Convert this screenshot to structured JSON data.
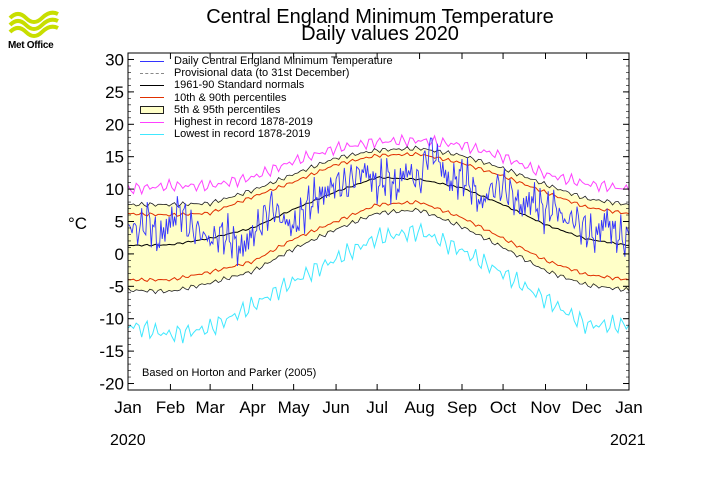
{
  "branding": {
    "logo_text": "Met Office",
    "logo_color": "#c8de00"
  },
  "chart_data": {
    "type": "line",
    "title": "Central England Minimum Temperature",
    "subtitle": "Daily values 2020",
    "ylabel": "°C",
    "ylim": [
      -21,
      31
    ],
    "yticks": [
      "30",
      "25",
      "20",
      "15",
      "10",
      "5",
      "0",
      "-5",
      "-10",
      "-15",
      "-20"
    ],
    "x_months": [
      "Jan",
      "Feb",
      "Mar",
      "Apr",
      "May",
      "Jun",
      "Jul",
      "Aug",
      "Sep",
      "Oct",
      "Nov",
      "Dec",
      "Jan"
    ],
    "year_start": "2020",
    "year_end": "2021",
    "credit": "Based on Horton and Parker (2005)",
    "grid": false,
    "legend_position": "top-left",
    "legend": [
      {
        "label": "Daily Central England Minimum Temperature",
        "style": "line",
        "color": "#3333ff"
      },
      {
        "label": "Provisional data (to 31st December)",
        "style": "dashed",
        "color": "#888888"
      },
      {
        "label": "1961-90 Standard normals",
        "style": "line",
        "color": "#000000"
      },
      {
        "label": "10th & 90th percentiles",
        "style": "line",
        "color": "#e03000"
      },
      {
        "label": "5th & 95th percentiles",
        "style": "box",
        "color": "#ffffc8"
      },
      {
        "label": "Highest in record 1878-2019",
        "style": "line",
        "color": "#ff40ff"
      },
      {
        "label": "Lowest in record 1878-2019",
        "style": "line",
        "color": "#40e8ff"
      }
    ],
    "colors": {
      "daily": "#3333ff",
      "normal": "#000000",
      "p10_p90": "#e03000",
      "p5_p95_fill": "#ffffc8",
      "p5_p95_line": "#202020",
      "highest": "#ff40ff",
      "lowest": "#40e8ff"
    },
    "series": [
      {
        "name": "1961-90 Standard normals",
        "key": "normal",
        "days": [
          0,
          31,
          60,
          91,
          121,
          152,
          182,
          213,
          244,
          274,
          305,
          335,
          366
        ],
        "values": [
          1.3,
          1.4,
          2.4,
          4.0,
          6.9,
          9.6,
          11.8,
          11.5,
          10.2,
          7.6,
          4.5,
          2.3,
          1.3
        ]
      },
      {
        "name": "10th percentile",
        "key": "p10",
        "days": [
          0,
          31,
          60,
          91,
          121,
          152,
          182,
          213,
          244,
          274,
          305,
          335,
          366
        ],
        "values": [
          -4.0,
          -4.0,
          -2.8,
          -1.2,
          2.3,
          5.0,
          7.6,
          8.0,
          5.6,
          2.4,
          -1.0,
          -3.2,
          -4.0
        ]
      },
      {
        "name": "90th percentile",
        "key": "p90",
        "days": [
          0,
          31,
          60,
          91,
          121,
          152,
          182,
          213,
          244,
          274,
          305,
          335,
          366
        ],
        "values": [
          6.2,
          6.0,
          6.3,
          8.8,
          11.1,
          13.8,
          15.2,
          15.4,
          14.0,
          12.0,
          9.5,
          7.2,
          6.2
        ]
      },
      {
        "name": "5th percentile",
        "key": "p5",
        "days": [
          0,
          31,
          60,
          91,
          121,
          152,
          182,
          213,
          244,
          274,
          305,
          335,
          366
        ],
        "values": [
          -5.6,
          -5.8,
          -4.5,
          -2.7,
          0.8,
          3.8,
          6.3,
          6.8,
          4.2,
          1.0,
          -2.6,
          -4.8,
          -5.6
        ]
      },
      {
        "name": "95th percentile",
        "key": "p95",
        "days": [
          0,
          31,
          60,
          91,
          121,
          152,
          182,
          213,
          244,
          274,
          305,
          335,
          366
        ],
        "values": [
          7.6,
          7.6,
          7.8,
          9.8,
          12.3,
          14.8,
          16.0,
          16.3,
          15.2,
          13.2,
          10.7,
          8.5,
          7.6
        ]
      },
      {
        "name": "Highest in record 1878-2019",
        "key": "highest",
        "days": [
          0,
          31,
          60,
          91,
          121,
          152,
          182,
          213,
          244,
          274,
          305,
          335,
          366
        ],
        "values": [
          10.0,
          10.5,
          10.5,
          11.8,
          14.3,
          16.3,
          17.3,
          17.5,
          16.8,
          15.0,
          12.3,
          10.8,
          10.0
        ]
      },
      {
        "name": "Lowest in record 1878-2019",
        "key": "lowest",
        "days": [
          0,
          31,
          60,
          91,
          121,
          152,
          182,
          213,
          244,
          274,
          305,
          335,
          366
        ],
        "values": [
          -11.0,
          -12.5,
          -11.5,
          -8.0,
          -4.2,
          -0.8,
          2.5,
          3.5,
          0.5,
          -3.0,
          -7.0,
          -11.0,
          -11.0
        ]
      },
      {
        "name": "Daily Central England Minimum Temperature",
        "key": "daily",
        "days": [
          0,
          7,
          15,
          22,
          31,
          38,
          45,
          52,
          60,
          67,
          75,
          82,
          91,
          98,
          105,
          112,
          121,
          128,
          135,
          142,
          152,
          159,
          166,
          173,
          182,
          189,
          196,
          203,
          213,
          220,
          227,
          234,
          244,
          251,
          258,
          265,
          274,
          281,
          288,
          295,
          305,
          312,
          319,
          326,
          335,
          342,
          349,
          356,
          366
        ],
        "values": [
          4.5,
          3.5,
          5.5,
          2.0,
          5.0,
          7.0,
          4.0,
          3.5,
          2.0,
          3.0,
          2.5,
          0.5,
          3.0,
          5.0,
          7.5,
          5.5,
          4.0,
          6.5,
          8.5,
          9.0,
          11.0,
          10.5,
          12.0,
          13.0,
          10.5,
          12.0,
          10.0,
          13.0,
          11.0,
          16.5,
          14.5,
          11.0,
          12.0,
          10.5,
          7.5,
          10.0,
          10.5,
          9.0,
          7.0,
          8.5,
          6.5,
          7.5,
          5.0,
          5.5,
          3.5,
          2.5,
          5.5,
          3.0,
          2.0
        ]
      }
    ]
  }
}
